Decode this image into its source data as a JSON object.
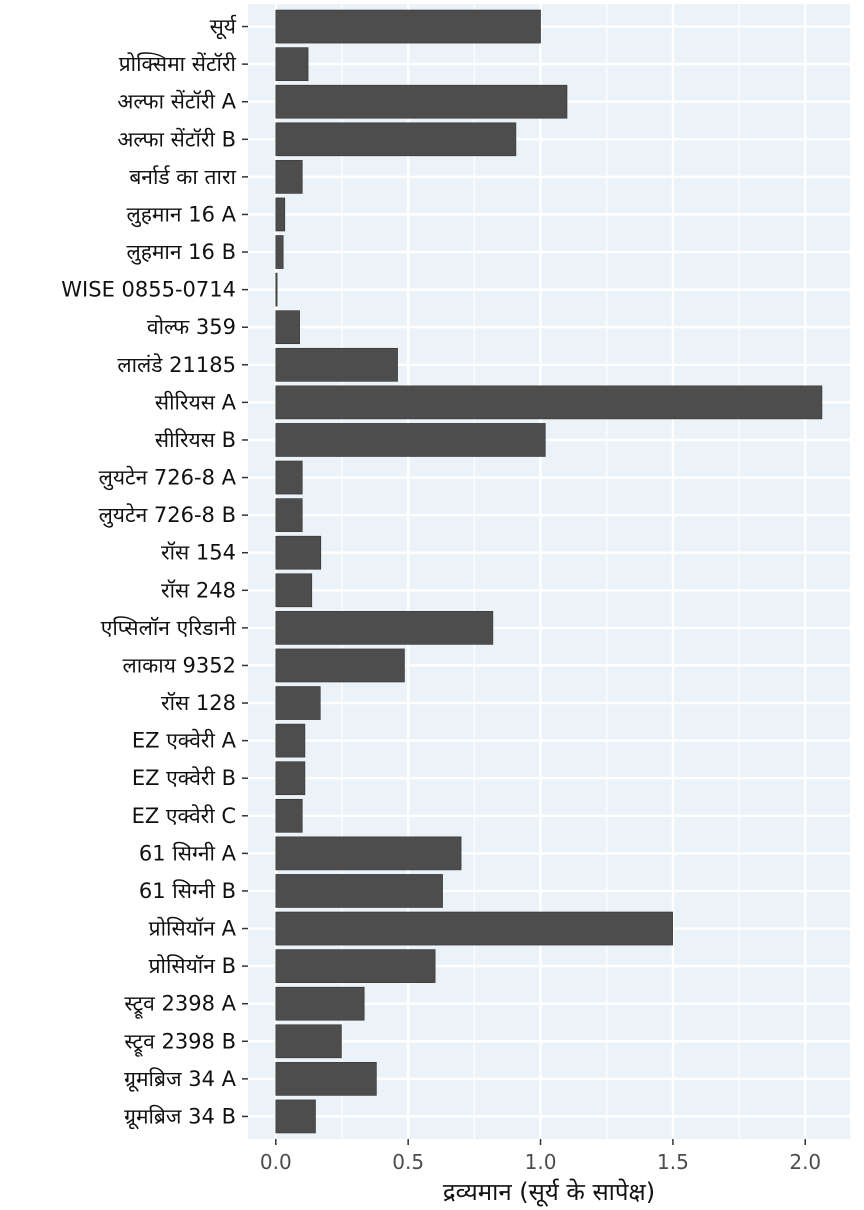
{
  "chart_data": {
    "type": "bar",
    "orientation": "horizontal",
    "categories": [
      "सूर्य",
      "प्रोक्सिमा सेंटॉरी",
      "अल्फा सेंटॉरी A",
      "अल्फा सेंटॉरी B",
      "बर्नार्ड का तारा",
      "लुहमान 16 A",
      "लुहमान 16 B",
      "WISE 0855-0714",
      "वोल्फ 359",
      "लालंडे 21185",
      "सीरियस A",
      "सीरियस B",
      "लुयटेन 726-8 A",
      "लुयटेन 726-8 B",
      "रॉस 154",
      "रॉस 248",
      "एप्सिलॉन एरिडानी",
      "लाकाय 9352",
      "रॉस 128",
      "EZ एक्वेरी A",
      "EZ एक्वेरी B",
      "EZ एक्वेरी C",
      "61 सिग्नी A",
      "61 सिग्नी B",
      "प्रोसियॉन A",
      "प्रोसियॉन B",
      "स्ट्रूव 2398 A",
      "स्ट्रूव 2398 B",
      "ग्रूमब्रिज 34 A",
      "ग्रूमब्रिज 34 B"
    ],
    "values": [
      1.0,
      0.122,
      1.1,
      0.907,
      0.1,
      0.034,
      0.028,
      0.005,
      0.09,
      0.46,
      2.063,
      1.018,
      0.1,
      0.1,
      0.17,
      0.136,
      0.82,
      0.486,
      0.168,
      0.11,
      0.11,
      0.1,
      0.7,
      0.63,
      1.499,
      0.602,
      0.334,
      0.248,
      0.38,
      0.15
    ],
    "title": "",
    "xlabel": "द्रव्यमान (सूर्य के सापेक्ष)",
    "ylabel": "",
    "xlim": [
      -0.105,
      2.169
    ],
    "xticks": [
      0.0,
      0.5,
      1.0,
      1.5,
      2.0
    ],
    "xtick_labels": [
      "0.0",
      "0.5",
      "1.0",
      "1.5",
      "2.0"
    ],
    "grid": true,
    "legend": "none",
    "colors": {
      "panel_background": "#ebf3f8",
      "grid_line": "#ffffff",
      "bar_fill": "#4d4d4d",
      "bar_stroke": "#333333",
      "tick_mark": "#333333"
    }
  }
}
